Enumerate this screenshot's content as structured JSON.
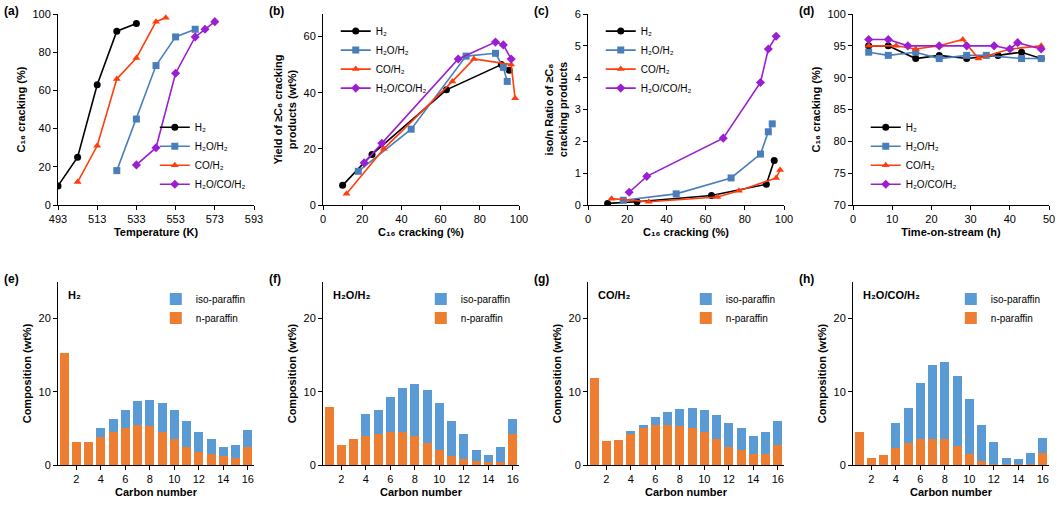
{
  "chart_data": [
    {
      "type": "line",
      "label": "(a)",
      "x_label": "Temperature (K)",
      "y_label": "C₁₆ cracking (%)",
      "xlim": [
        493,
        593
      ],
      "xticks": [
        493,
        513,
        533,
        553,
        573,
        593
      ],
      "ylim": [
        0,
        100
      ],
      "yticks": [
        0,
        20,
        40,
        60,
        80,
        100
      ],
      "legend": "lower right",
      "series": [
        {
          "name": "H₂",
          "color": "#000000",
          "marker": "circle",
          "x": [
            493,
            503,
            513,
            523,
            533
          ],
          "values": [
            10,
            25,
            63,
            91,
            95
          ]
        },
        {
          "name": "H₂O/H₂",
          "color": "#4a7ebb",
          "marker": "square",
          "x": [
            523,
            533,
            543,
            553,
            563
          ],
          "values": [
            18,
            45,
            73,
            88,
            92
          ]
        },
        {
          "name": "CO/H₂",
          "color": "#ff3d0d",
          "marker": "triangle-up",
          "x": [
            503,
            513,
            523,
            533,
            543,
            548
          ],
          "values": [
            12,
            31,
            66,
            77,
            96,
            98
          ]
        },
        {
          "name": "H₂O/CO/H₂",
          "color": "#9b1fd1",
          "marker": "diamond",
          "x": [
            533,
            543,
            553,
            563,
            568,
            573
          ],
          "values": [
            21,
            30,
            69,
            88,
            92,
            96
          ]
        }
      ]
    },
    {
      "type": "line",
      "label": "(b)",
      "x_label": "C₁₆ cracking (%)",
      "y_label": "Yield of ≥C₈ cracking products (wt%)",
      "xlim": [
        0,
        100
      ],
      "xticks": [
        0,
        20,
        40,
        60,
        80,
        100
      ],
      "ylim": [
        0,
        68
      ],
      "yticks": [
        0,
        20,
        40,
        60
      ],
      "legend": "upper left",
      "series": [
        {
          "name": "H₂",
          "color": "#000000",
          "marker": "circle",
          "x": [
            10,
            25,
            63,
            91,
            95
          ],
          "values": [
            7,
            18,
            41,
            50,
            48
          ]
        },
        {
          "name": "H₂O/H₂",
          "color": "#4a7ebb",
          "marker": "square",
          "x": [
            18,
            45,
            73,
            88,
            92,
            94
          ],
          "values": [
            12,
            27,
            53,
            54,
            49,
            44
          ]
        },
        {
          "name": "CO/H₂",
          "color": "#ff3d0d",
          "marker": "triangle-up",
          "x": [
            12,
            31,
            66,
            77,
            96,
            98
          ],
          "values": [
            4,
            20,
            44,
            52,
            50,
            38
          ]
        },
        {
          "name": "H₂O/CO/H₂",
          "color": "#9b1fd1",
          "marker": "diamond",
          "x": [
            21,
            30,
            69,
            88,
            92,
            96
          ],
          "values": [
            15,
            22,
            52,
            58,
            57,
            52
          ]
        }
      ]
    },
    {
      "type": "line",
      "label": "(c)",
      "x_label": "C₁₆ cracking (%)",
      "y_label": "iso/n Ratio of ≥C₈ cracking products",
      "xlim": [
        0,
        100
      ],
      "xticks": [
        0,
        20,
        40,
        60,
        80,
        100
      ],
      "ylim": [
        0,
        6
      ],
      "yticks": [
        0,
        1,
        2,
        3,
        4,
        5,
        6
      ],
      "legend": "upper left",
      "series": [
        {
          "name": "H₂",
          "color": "#000000",
          "marker": "circle",
          "x": [
            10,
            25,
            63,
            91,
            95
          ],
          "values": [
            0.05,
            0.1,
            0.3,
            0.65,
            1.4
          ]
        },
        {
          "name": "H₂O/H₂",
          "color": "#4a7ebb",
          "marker": "square",
          "x": [
            18,
            45,
            73,
            88,
            92,
            94
          ],
          "values": [
            0.15,
            0.35,
            0.85,
            1.6,
            2.3,
            2.55
          ]
        },
        {
          "name": "CO/H₂",
          "color": "#ff3d0d",
          "marker": "triangle-up",
          "x": [
            12,
            31,
            66,
            77,
            96,
            98
          ],
          "values": [
            0.2,
            0.1,
            0.25,
            0.45,
            0.85,
            1.1
          ]
        },
        {
          "name": "H₂O/CO/H₂",
          "color": "#9b1fd1",
          "marker": "diamond",
          "x": [
            21,
            30,
            69,
            88,
            92,
            96
          ],
          "values": [
            0.4,
            0.9,
            2.1,
            3.85,
            4.9,
            5.3
          ]
        }
      ]
    },
    {
      "type": "line",
      "label": "(d)",
      "x_label": "Time-on-stream (h)",
      "y_label": "C₁₆ cracking (%)",
      "xlim": [
        0,
        50
      ],
      "xticks": [
        0,
        10,
        20,
        30,
        40,
        50
      ],
      "ylim": [
        70,
        100
      ],
      "yticks": [
        70,
        75,
        80,
        85,
        90,
        95,
        100
      ],
      "legend": "lower left",
      "series": [
        {
          "name": "H₂",
          "color": "#000000",
          "marker": "circle",
          "x": [
            4,
            9,
            16,
            22,
            29,
            37,
            43,
            48
          ],
          "values": [
            95,
            95,
            93,
            93.5,
            93,
            93.5,
            94,
            93
          ]
        },
        {
          "name": "H₂O/H₂",
          "color": "#4a7ebb",
          "marker": "square",
          "x": [
            4,
            9,
            16,
            22,
            29,
            34,
            43,
            48
          ],
          "values": [
            94,
            93.5,
            94,
            93,
            93.5,
            93.5,
            93,
            93
          ]
        },
        {
          "name": "CO/H₂",
          "color": "#ff3d0d",
          "marker": "triangle-up",
          "x": [
            4,
            11,
            16,
            22,
            28,
            32,
            40,
            48
          ],
          "values": [
            95,
            95,
            94.5,
            95,
            96,
            93,
            94.5,
            95
          ]
        },
        {
          "name": "H₂O/CO/H₂",
          "color": "#9b1fd1",
          "marker": "diamond",
          "x": [
            4,
            9,
            14,
            22,
            29,
            36,
            40,
            42,
            48
          ],
          "values": [
            96,
            96,
            95,
            95,
            95,
            95,
            94.5,
            95.5,
            94.5
          ]
        }
      ]
    },
    {
      "type": "bar",
      "stacked": true,
      "label": "(e)",
      "title": "H₂",
      "x_label": "Carbon number",
      "y_label": "Composition (wt%)",
      "x": [
        1,
        2,
        3,
        4,
        5,
        6,
        7,
        8,
        9,
        10,
        11,
        12,
        13,
        14,
        15,
        16
      ],
      "xlim": [
        0.5,
        16.5
      ],
      "xticks": [
        2,
        4,
        6,
        8,
        10,
        12,
        14,
        16
      ],
      "ylim": [
        0,
        25
      ],
      "yticks": [
        0,
        10,
        20
      ],
      "legend": "upper right",
      "series": [
        {
          "name": "n-paraffin",
          "color": "#ed7d31",
          "values": [
            15.3,
            3.2,
            3.2,
            3.8,
            4.5,
            5.0,
            5.5,
            5.3,
            4.5,
            3.5,
            2.5,
            1.8,
            1.5,
            1.2,
            1.0,
            2.5
          ]
        },
        {
          "name": "iso-paraffin",
          "color": "#5b9bd5",
          "values": [
            0,
            0,
            0,
            1.2,
            1.8,
            2.5,
            3.2,
            3.6,
            4.0,
            4.0,
            3.5,
            2.7,
            2.0,
            1.3,
            1.8,
            2.3
          ]
        }
      ]
    },
    {
      "type": "bar",
      "stacked": true,
      "label": "(f)",
      "title": "H₂O/H₂",
      "x_label": "Carbon number",
      "y_label": "Composition (wt%)",
      "x": [
        1,
        2,
        3,
        4,
        5,
        6,
        7,
        8,
        9,
        10,
        11,
        12,
        13,
        14,
        15,
        16
      ],
      "xlim": [
        0.5,
        16.5
      ],
      "xticks": [
        2,
        4,
        6,
        8,
        10,
        12,
        14,
        16
      ],
      "ylim": [
        0,
        25
      ],
      "yticks": [
        0,
        10,
        20
      ],
      "legend": "upper right",
      "series": [
        {
          "name": "n-paraffin",
          "color": "#ed7d31",
          "values": [
            7.9,
            2.8,
            3.5,
            4.0,
            4.2,
            4.5,
            4.5,
            4.0,
            3.0,
            2.0,
            1.2,
            0.8,
            0.5,
            0.4,
            0.4,
            4.2
          ]
        },
        {
          "name": "iso-paraffin",
          "color": "#5b9bd5",
          "values": [
            0,
            0,
            0,
            3.0,
            3.3,
            4.8,
            6.0,
            7.0,
            7.2,
            6.5,
            4.8,
            3.4,
            1.5,
            0.9,
            2.1,
            2.1
          ]
        }
      ]
    },
    {
      "type": "bar",
      "stacked": true,
      "label": "(g)",
      "title": "CO/H₂",
      "x_label": "Carbon number",
      "y_label": "Composition (wt%)",
      "x": [
        1,
        2,
        3,
        4,
        5,
        6,
        7,
        8,
        9,
        10,
        11,
        12,
        13,
        14,
        15,
        16
      ],
      "xlim": [
        0.5,
        16.5
      ],
      "xticks": [
        2,
        4,
        6,
        8,
        10,
        12,
        14,
        16
      ],
      "ylim": [
        0,
        25
      ],
      "yticks": [
        0,
        10,
        20
      ],
      "legend": "upper right",
      "series": [
        {
          "name": "n-paraffin",
          "color": "#ed7d31",
          "values": [
            11.9,
            3.3,
            3.4,
            4.2,
            5.0,
            5.5,
            5.5,
            5.3,
            5.0,
            4.5,
            3.5,
            2.5,
            2.0,
            1.5,
            1.5,
            2.7
          ]
        },
        {
          "name": "iso-paraffin",
          "color": "#5b9bd5",
          "values": [
            0,
            0,
            0,
            0.4,
            0.5,
            1.0,
            1.7,
            2.3,
            2.8,
            3.0,
            3.3,
            3.3,
            3.0,
            2.5,
            3.0,
            3.3
          ]
        }
      ]
    },
    {
      "type": "bar",
      "stacked": true,
      "label": "(h)",
      "title": "H₂O/CO/H₂",
      "x_label": "Carbon number",
      "y_label": "Composition (wt%)",
      "x": [
        1,
        2,
        3,
        4,
        5,
        6,
        7,
        8,
        9,
        10,
        11,
        12,
        13,
        14,
        15,
        16
      ],
      "xlim": [
        0.5,
        16.5
      ],
      "xticks": [
        2,
        4,
        6,
        8,
        10,
        12,
        14,
        16
      ],
      "ylim": [
        0,
        25
      ],
      "yticks": [
        0,
        10,
        20
      ],
      "legend": "upper right",
      "series": [
        {
          "name": "n-paraffin",
          "color": "#ed7d31",
          "values": [
            4.5,
            1.0,
            1.4,
            2.3,
            3.0,
            3.5,
            3.6,
            3.5,
            2.6,
            1.5,
            0.6,
            0.2,
            0.1,
            0.1,
            0.1,
            1.6
          ]
        },
        {
          "name": "iso-paraffin",
          "color": "#5b9bd5",
          "values": [
            0,
            0,
            0,
            3.4,
            4.8,
            7.7,
            10.0,
            10.6,
            9.6,
            7.5,
            4.9,
            3.0,
            0.9,
            0.7,
            1.6,
            2.1
          ]
        }
      ]
    }
  ]
}
